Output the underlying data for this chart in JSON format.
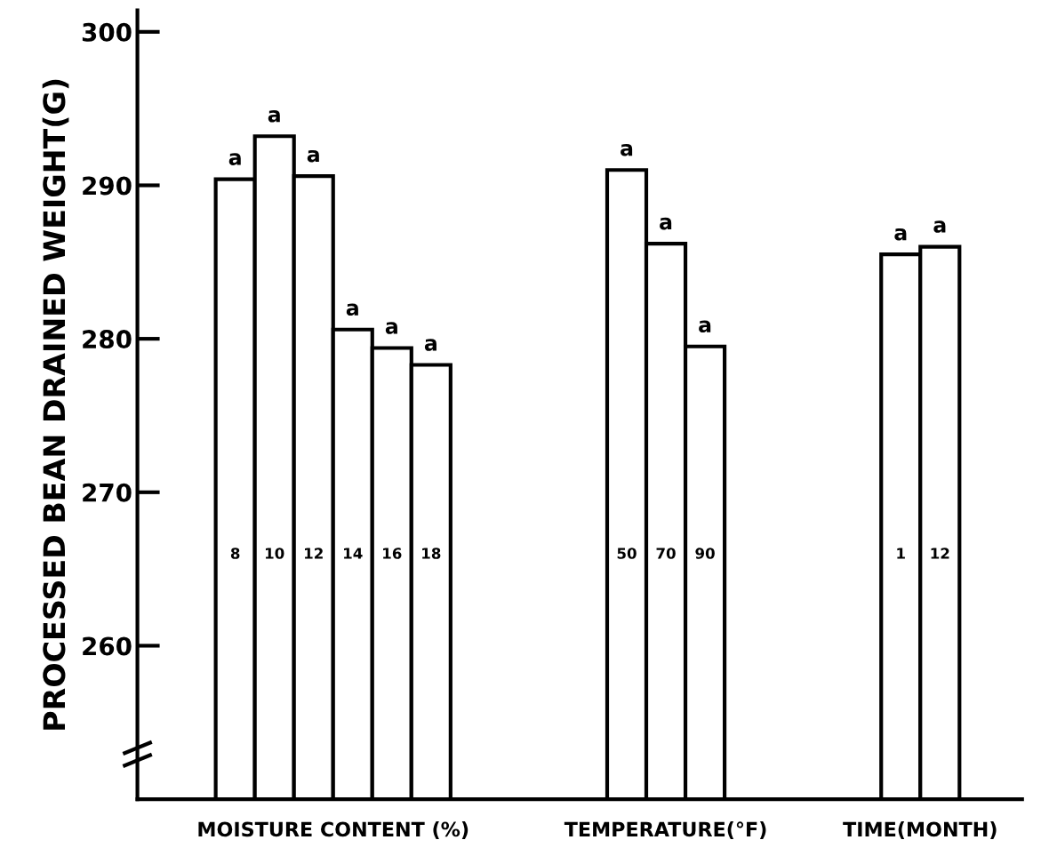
{
  "chart_data": {
    "type": "bar",
    "ylabel": "PROCESSED BEAN DRAINED WEIGHT(G)",
    "categories": [
      "8",
      "10",
      "12",
      "14",
      "16",
      "18",
      null,
      null,
      null,
      null,
      "50",
      "70",
      "90",
      null,
      null,
      null,
      null,
      "1",
      "12"
    ],
    "values": [
      290.4,
      293.2,
      290.6,
      280.6,
      279.4,
      278.3,
      null,
      null,
      null,
      null,
      291.0,
      286.2,
      279.5,
      null,
      null,
      null,
      null,
      285.5,
      286.0
    ],
    "value_labels": [
      "a",
      "a",
      "a",
      "a",
      "a",
      "a",
      null,
      null,
      null,
      null,
      "a",
      "a",
      "a",
      null,
      null,
      null,
      null,
      "a",
      "a"
    ],
    "color": "#ffffff",
    "ylim": [
      250,
      301.4
    ],
    "yticks": [
      260,
      270,
      280,
      290,
      300
    ],
    "annotations": [
      "MOISTURE CONTENT (%)",
      "TEMPERATURE(°F)",
      "TIME(MONTH)"
    ],
    "grid": false
  }
}
